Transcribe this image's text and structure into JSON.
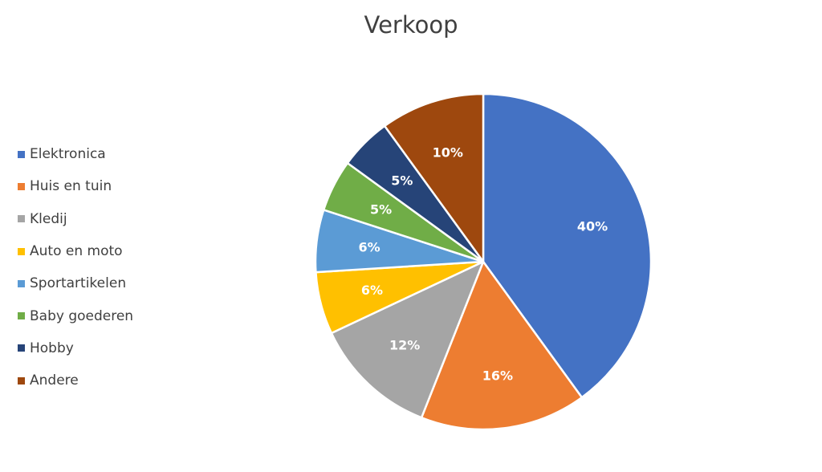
{
  "chart_data": {
    "type": "pie",
    "title": "Verkoop",
    "legend_position": "left",
    "categories": [
      "Elektronica",
      "Huis en tuin",
      "Kledij",
      "Auto en moto",
      "Sportartikelen",
      "Baby goederen",
      "Hobby",
      "Andere"
    ],
    "values": [
      40,
      16,
      12,
      6,
      6,
      5,
      5,
      10
    ],
    "labels": [
      "40%",
      "16%",
      "12%",
      "6%",
      "6%",
      "5%",
      "5%",
      "10%"
    ],
    "colors": [
      "#4472C4",
      "#ED7D31",
      "#A5A5A5",
      "#FFC000",
      "#5B9BD5",
      "#70AD47",
      "#264478",
      "#9E480E"
    ]
  }
}
